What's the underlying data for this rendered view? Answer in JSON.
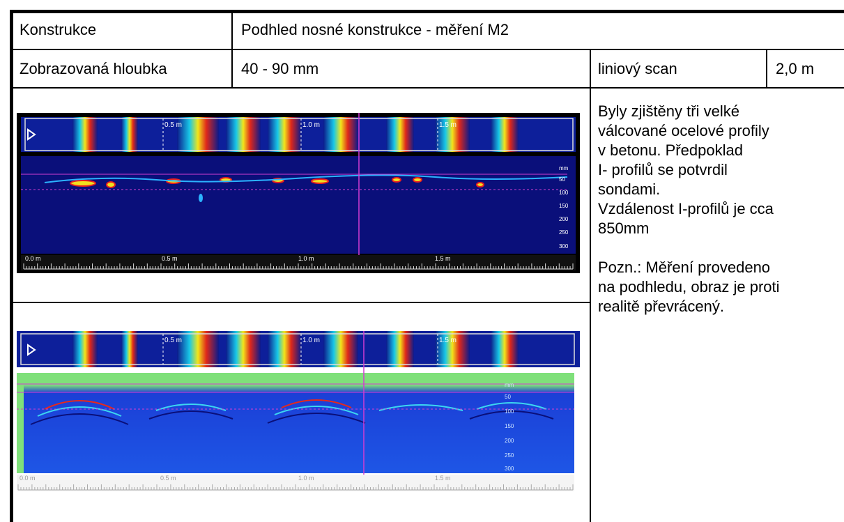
{
  "table": {
    "row1": {
      "label": "Konstrukce",
      "value": "Podhled nosné konstrukce  - měření M2"
    },
    "row2": {
      "label": "Zobrazovaná hloubka",
      "value": "40 - 90 mm",
      "scan_label": "liniový scan",
      "scan_length": "2,0  m"
    },
    "note": "Byly zjištěny tři velké\nválcované ocelové profily\nv betonu. Předpoklad\nI- profilů se potvrdil\nsondami.\nVzdálenost I-profilů je cca\n850mm\n\nPozn.: Měření provedeno\nna podhledu, obraz je proti\nrealitě převrácený."
  },
  "scan1": {
    "top_markers": [
      "0.5 m",
      "1.0 m",
      "1.5 m"
    ],
    "depth_ticks": [
      "mm",
      "50",
      "100",
      "150",
      "200",
      "250",
      "300"
    ],
    "ruler_labels": [
      "0.0 m",
      "0.5 m",
      "1.0 m",
      "1.5 m"
    ]
  },
  "scan2": {
    "top_markers": [
      "0.5 m",
      "1.0 m",
      "1.5 m"
    ],
    "depth_ticks": [
      "mm",
      "50",
      "100",
      "150",
      "200",
      "250",
      "300"
    ],
    "ruler_labels": [
      "0.0 m",
      "0.5 m",
      "1.0 m",
      "1.5 m"
    ]
  },
  "colors": {
    "radar_dark": "#0a0f7a",
    "radar_mid": "#1b3fd6",
    "cursor": "#d23cd2"
  }
}
